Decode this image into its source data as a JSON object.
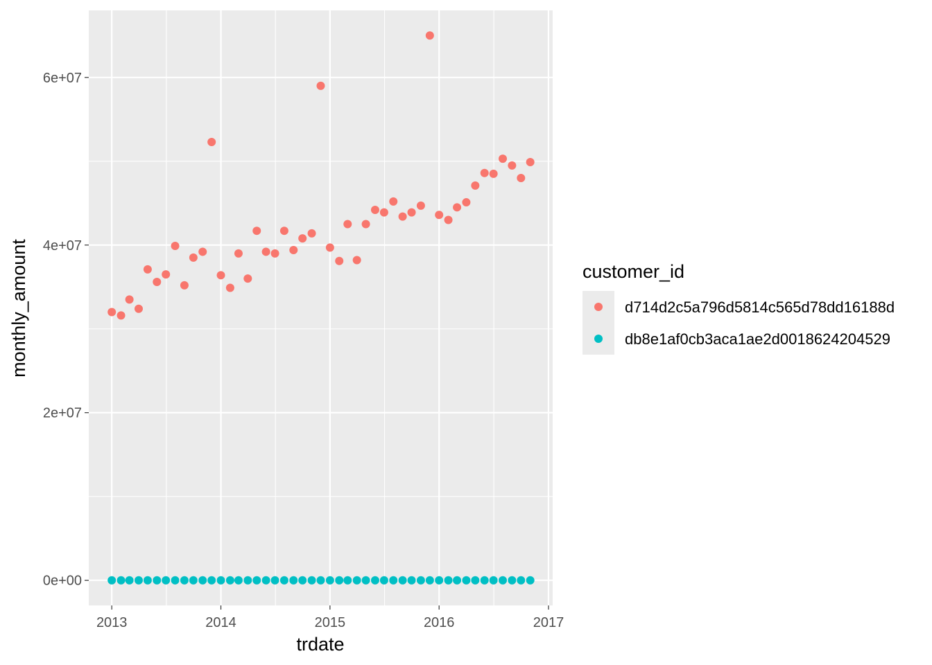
{
  "chart_data": {
    "type": "scatter",
    "xlabel": "trdate",
    "ylabel": "monthly_amount",
    "x_ticks": [
      "2013",
      "2014",
      "2015",
      "2016",
      "2017"
    ],
    "y_ticks": [
      "0e+00",
      "2e+07",
      "4e+07",
      "6e+07"
    ],
    "xlim": [
      "2012-10-16",
      "2017-01-15"
    ],
    "ylim": [
      -3000000,
      68000000
    ],
    "grid": true,
    "legend_title": "customer_id",
    "legend_position": "right",
    "x": [
      "2013-01-01",
      "2013-02-01",
      "2013-03-01",
      "2013-04-01",
      "2013-05-01",
      "2013-06-01",
      "2013-07-01",
      "2013-08-01",
      "2013-09-01",
      "2013-10-01",
      "2013-11-01",
      "2013-12-01",
      "2014-01-01",
      "2014-02-01",
      "2014-03-01",
      "2014-04-01",
      "2014-05-01",
      "2014-06-01",
      "2014-07-01",
      "2014-08-01",
      "2014-09-01",
      "2014-10-01",
      "2014-11-01",
      "2014-12-01",
      "2015-01-01",
      "2015-02-01",
      "2015-03-01",
      "2015-04-01",
      "2015-05-01",
      "2015-06-01",
      "2015-07-01",
      "2015-08-01",
      "2015-09-01",
      "2015-10-01",
      "2015-11-01",
      "2015-12-01",
      "2016-01-01",
      "2016-02-01",
      "2016-03-01",
      "2016-04-01",
      "2016-05-01",
      "2016-06-01",
      "2016-07-01",
      "2016-08-01",
      "2016-09-01",
      "2016-10-01",
      "2016-11-01"
    ],
    "series": [
      {
        "name": "d714d2c5a796d5814c565d78dd16188d",
        "color": "#F8766D",
        "values": [
          32000000,
          31600000,
          33500000,
          32400000,
          37100000,
          35600000,
          36500000,
          39900000,
          35200000,
          38500000,
          39200000,
          52300000,
          36400000,
          34900000,
          39000000,
          36000000,
          41700000,
          39200000,
          39000000,
          41700000,
          39400000,
          40800000,
          41400000,
          59000000,
          39700000,
          38100000,
          42500000,
          38200000,
          42500000,
          44200000,
          43900000,
          45200000,
          43400000,
          43900000,
          44700000,
          65000000,
          43600000,
          43000000,
          44500000,
          45100000,
          47100000,
          48600000,
          48500000,
          50300000,
          49500000,
          48000000,
          49900000
        ]
      },
      {
        "name": "db8e1af0cb3aca1ae2d0018624204529",
        "color": "#00BFC4",
        "values": [
          0,
          0,
          0,
          0,
          0,
          0,
          0,
          0,
          0,
          0,
          0,
          0,
          0,
          0,
          0,
          0,
          0,
          0,
          0,
          0,
          0,
          0,
          0,
          0,
          0,
          0,
          0,
          0,
          0,
          0,
          0,
          0,
          0,
          0,
          0,
          0,
          0,
          0,
          0,
          0,
          0,
          0,
          0,
          0,
          0,
          0,
          0
        ]
      }
    ]
  }
}
